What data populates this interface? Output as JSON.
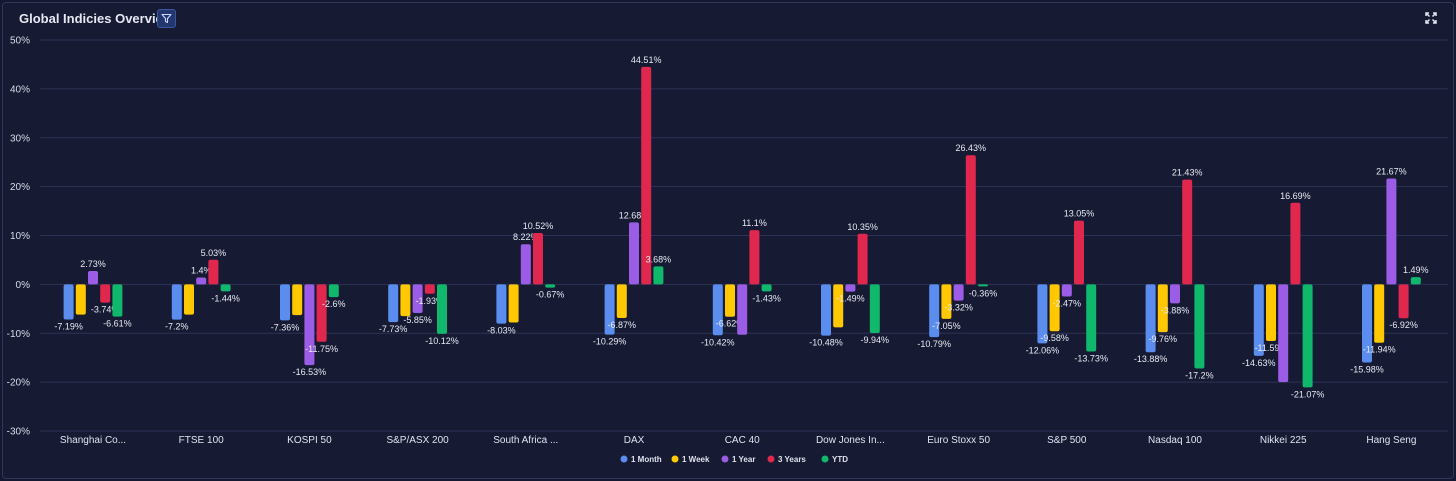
{
  "header": {
    "title": "Global Indicies Overview",
    "filter_icon": "filter-icon",
    "expand_icon": "expand-icon"
  },
  "colors": {
    "1 Month": "#5b8def",
    "1 Week": "#ffc800",
    "1 Year": "#9b5de5",
    "3 Years": "#e0284f",
    "YTD": "#10b86b"
  },
  "chart_data": {
    "type": "bar",
    "title": "Global Indicies Overview",
    "xlabel": "",
    "ylabel": "",
    "ylim": [
      -30,
      50
    ],
    "yticks": [
      -30,
      -20,
      -10,
      0,
      10,
      20,
      30,
      40,
      50
    ],
    "ytick_labels": [
      "-30%",
      "-20%",
      "-10%",
      "0%",
      "10%",
      "20%",
      "30%",
      "40%",
      "50%"
    ],
    "grid": true,
    "legend_position": "bottom-center",
    "categories": [
      "Shanghai Co...",
      "FTSE 100",
      "KOSPI 50",
      "S&P/ASX 200",
      "South Africa ...",
      "DAX",
      "CAC 40",
      "Dow Jones In...",
      "Euro Stoxx 50",
      "S&P 500",
      "Nasdaq 100",
      "Nikkei 225",
      "Hang Seng"
    ],
    "series": [
      {
        "name": "1 Month",
        "values": [
          -7.19,
          -7.2,
          -7.36,
          -7.73,
          -8.03,
          -10.29,
          -10.42,
          -10.48,
          -10.79,
          -12.06,
          -13.88,
          -14.63,
          -15.98
        ],
        "labels": [
          "-7.19%",
          "-7.2%",
          "-7.36%",
          "-7.73%",
          "-8.03%",
          "-10.29%",
          "-10.42%",
          "-10.48%",
          "-10.79%",
          "-12.06%",
          "-13.88%",
          "-14.63%",
          "-15.98%"
        ]
      },
      {
        "name": "1 Week",
        "values": [
          -6.2,
          -6.2,
          -6.3,
          -6.5,
          -7.8,
          -6.87,
          -6.62,
          -8.8,
          -7.05,
          -9.58,
          -9.76,
          -11.59,
          -11.94
        ],
        "labels": [
          "",
          "",
          "",
          "",
          "",
          "-6.87%",
          "-6.62%",
          "",
          "-7.05%",
          "-9.58%",
          "-9.76%",
          "-11.59%",
          "-11.94%"
        ]
      },
      {
        "name": "1 Year",
        "values": [
          2.73,
          1.4,
          -16.53,
          -5.85,
          8.22,
          12.68,
          -10.3,
          -1.49,
          -3.32,
          -2.47,
          -3.88,
          -20.0,
          21.67
        ],
        "labels": [
          "2.73%",
          "1.4%",
          "-16.53%",
          "-5.85%",
          "8.22%",
          "12.68%",
          "",
          "-1.49%",
          "-3.32%",
          "-2.47%",
          "-3.88%",
          "",
          "21.67%"
        ]
      },
      {
        "name": "3 Years",
        "values": [
          -3.74,
          5.03,
          -11.75,
          -1.93,
          10.52,
          44.51,
          11.1,
          10.35,
          26.43,
          13.05,
          21.43,
          16.69,
          -6.92
        ],
        "labels": [
          "-3.74%",
          "5.03%",
          "-11.75%",
          "-1.93%",
          "10.52%",
          "44.51%",
          "11.1%",
          "10.35%",
          "26.43%",
          "13.05%",
          "21.43%",
          "16.69%",
          "-6.92%"
        ]
      },
      {
        "name": "YTD",
        "values": [
          -6.61,
          -1.44,
          -2.6,
          -10.12,
          -0.67,
          3.68,
          -1.43,
          -9.94,
          -0.36,
          -13.73,
          -17.2,
          -21.07,
          1.49
        ],
        "labels": [
          "-6.61%",
          "-1.44%",
          "-2.6%",
          "-10.12%",
          "-0.67%",
          "3.68%",
          "-1.43%",
          "-9.94%",
          "-0.36%",
          "-13.73%",
          "-17.2%",
          "-21.07%",
          "1.49%"
        ]
      }
    ]
  }
}
